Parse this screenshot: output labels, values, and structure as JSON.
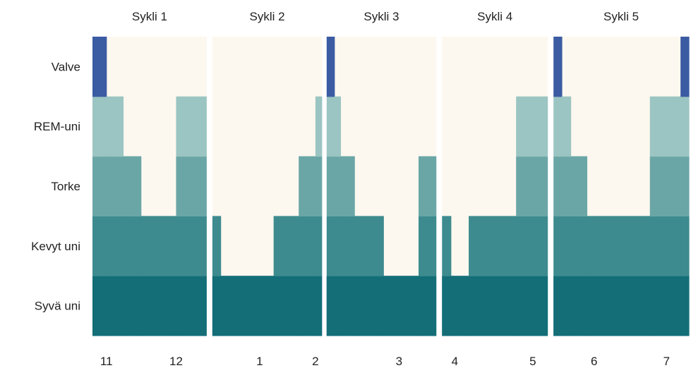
{
  "chart_data": {
    "type": "area",
    "cycles": [
      "Sykli 1",
      "Sykli 2",
      "Sykli 3",
      "Sykli 4",
      "Sykli 5"
    ],
    "stages": [
      "Valve",
      "REM-uni",
      "Torke",
      "Kevyt uni",
      "Syvä uni"
    ],
    "x_ticks": [
      {
        "label": "11",
        "t": 0.25
      },
      {
        "label": "12",
        "t": 1.5
      },
      {
        "label": "1",
        "t": 3.0
      },
      {
        "label": "2",
        "t": 4.0
      },
      {
        "label": "3",
        "t": 5.5
      },
      {
        "label": "4",
        "t": 6.5
      },
      {
        "label": "5",
        "t": 7.9
      },
      {
        "label": "6",
        "t": 9.0
      },
      {
        "label": "7",
        "t": 10.3
      }
    ],
    "time_range": [
      0,
      10.7
    ],
    "cycle_bounds": [
      [
        0,
        2.05
      ],
      [
        2.15,
        4.12
      ],
      [
        4.2,
        6.17
      ],
      [
        6.27,
        8.17
      ],
      [
        8.27,
        10.7
      ]
    ],
    "depth_levels": {
      "Valve": 5,
      "REM-uni": 4,
      "Torke": 3,
      "Kevyt uni": 2,
      "Syvä uni": 1
    },
    "hypnogram": [
      [
        0,
        5
      ],
      [
        0.25,
        4
      ],
      [
        0.55,
        3
      ],
      [
        0.87,
        2
      ],
      [
        1.5,
        4
      ],
      [
        2.05,
        1
      ],
      [
        2.15,
        2
      ],
      [
        2.3,
        1
      ],
      [
        3.25,
        2
      ],
      [
        3.7,
        3
      ],
      [
        4.0,
        4
      ],
      [
        4.12,
        1
      ],
      [
        4.2,
        5
      ],
      [
        4.34,
        4
      ],
      [
        4.45,
        3
      ],
      [
        4.7,
        2
      ],
      [
        5.22,
        1
      ],
      [
        5.85,
        3
      ],
      [
        6.17,
        1
      ],
      [
        6.27,
        2
      ],
      [
        6.43,
        1
      ],
      [
        6.75,
        2
      ],
      [
        7.6,
        4
      ],
      [
        8.17,
        1
      ],
      [
        8.27,
        5
      ],
      [
        8.42,
        4
      ],
      [
        8.58,
        3
      ],
      [
        8.87,
        2
      ],
      [
        10.0,
        4
      ],
      [
        10.55,
        5
      ],
      [
        10.7,
        0
      ]
    ],
    "colors": {
      "Valve": "#3b5ba3",
      "REM-uni": "#9bc5c2",
      "Torke": "#6ba6a7",
      "Kevyt uni": "#3d8b8f",
      "Syvä uni": "#136e78",
      "background": "#fdf8ef",
      "separator": "#ffffff"
    }
  }
}
